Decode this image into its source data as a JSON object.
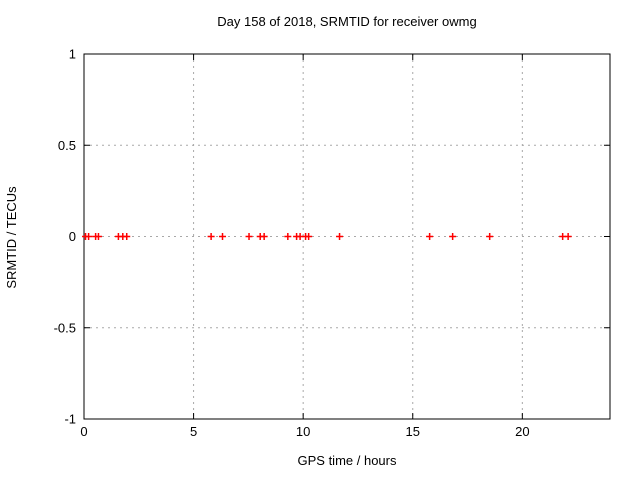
{
  "title": "Day 158 of 2018, SRMTID for receiver owmg",
  "chart_data": {
    "type": "scatter",
    "title": "Day 158 of 2018, SRMTID for receiver owmg",
    "xlabel": "GPS time / hours",
    "ylabel": "SRMTID / TECUs",
    "xlim": [
      0,
      24
    ],
    "ylim": [
      -1,
      1
    ],
    "xticks": [
      0,
      5,
      10,
      15,
      20
    ],
    "yticks": [
      1,
      0.5,
      0,
      -0.5,
      -1
    ],
    "ytick_labels": [
      "1",
      "0.5",
      "0",
      "-0.5",
      "-1"
    ],
    "xtick_labels": [
      "0",
      "5",
      "10",
      "15",
      "20"
    ],
    "grid": true,
    "legend": "none",
    "marker": "plus",
    "marker_color": "#ff0000",
    "grid_color": "#a8a8a8",
    "frame_color": "#000000",
    "series": [
      {
        "name": "SRMTID",
        "x": [
          0.07,
          0.21,
          0.53,
          0.66,
          1.57,
          1.77,
          1.95,
          5.8,
          6.32,
          7.53,
          8.04,
          8.22,
          9.3,
          9.7,
          9.86,
          10.11,
          10.25,
          11.66,
          15.77,
          16.82,
          18.51,
          21.84,
          22.09
        ],
        "y": [
          0,
          0,
          0,
          0,
          0,
          0,
          0,
          0,
          0,
          0,
          0,
          0,
          0,
          0,
          0,
          0,
          0,
          0,
          0,
          0,
          0,
          0,
          0
        ]
      }
    ]
  }
}
